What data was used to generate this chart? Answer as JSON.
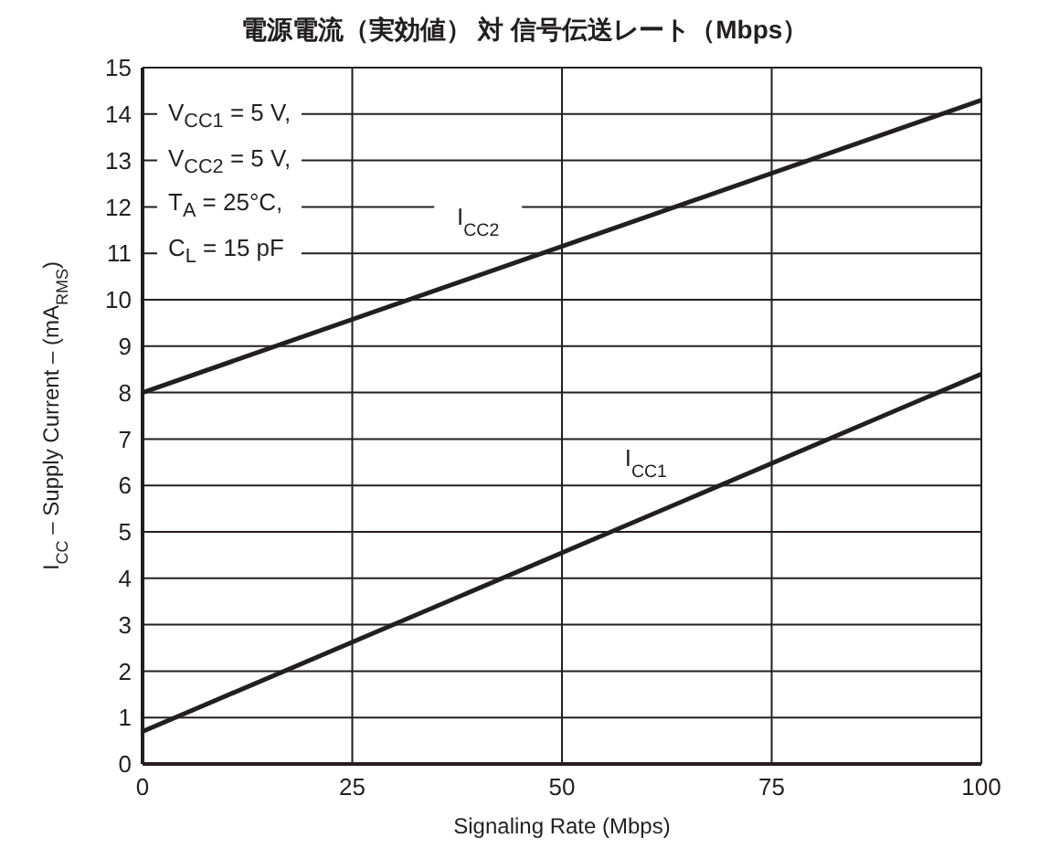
{
  "chart_data": {
    "type": "line",
    "title": "電源電流（実効値） 対 信号伝送レート（Mbps）",
    "xlabel": "Signaling Rate (Mbps)",
    "ylabel": "I$_{CC}$ – Supply Current  – (mA$_{RMS}$)",
    "x": [
      0,
      100
    ],
    "series": [
      {
        "name": "I$_{CC2}$",
        "color": "#231f20",
        "values": [
          8.0,
          14.3
        ]
      },
      {
        "name": "I$_{CC1}$",
        "color": "#231f20",
        "values": [
          0.7,
          8.4
        ]
      }
    ],
    "xlim": [
      0,
      100
    ],
    "xticks": [
      0,
      25,
      50,
      75,
      100
    ],
    "ylim": [
      0,
      15
    ],
    "yticks": [
      0,
      1,
      2,
      3,
      4,
      5,
      6,
      7,
      8,
      9,
      10,
      11,
      12,
      13,
      14,
      15
    ],
    "grid": true,
    "marker": "none",
    "line_style": "solid",
    "annotations": [
      "V$_{CC1}$ = 5 V,",
      "V$_{CC2}$ = 5 V,",
      "T$_{A}$ = 25°C,",
      "C$_{L}$  = 15 pF"
    ]
  }
}
